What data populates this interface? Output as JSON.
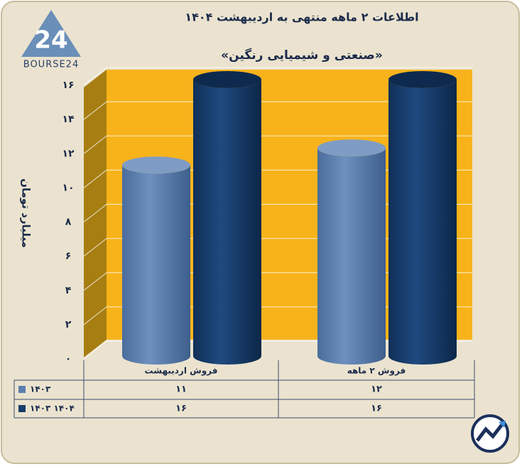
{
  "chart_data": {
    "type": "bar",
    "title": "اطلاعات ۲ ماهه منتهی به اردیبهشت ۱۴۰۴",
    "subtitle": "«صنعتی و شیمیایی رنگین»",
    "y_label": "میلیارد تومان",
    "logo": "BOURSE24",
    "categories": [
      "فروش اردیبهشت",
      "فروش ۲ ماهه"
    ],
    "series": [
      {
        "name": "۱۴۰۳",
        "color": "#5b7fae",
        "values": [
          11,
          12
        ],
        "value_labels": [
          "۱۱",
          "۱۲"
        ]
      },
      {
        "name": "۱۴۰۳ ۱۴۰۴",
        "color": "#173d6b",
        "values": [
          16,
          16
        ],
        "value_labels": [
          "۱۶",
          "۱۶"
        ]
      }
    ],
    "ylim": [
      0,
      16
    ],
    "yticks": [
      {
        "value": 0,
        "label": "۰"
      },
      {
        "value": 2,
        "label": "۲"
      },
      {
        "value": 4,
        "label": "۴"
      },
      {
        "value": 6,
        "label": "۶"
      },
      {
        "value": 8,
        "label": "۸"
      },
      {
        "value": 10,
        "label": "۱۰"
      },
      {
        "value": 12,
        "label": "۱۲"
      },
      {
        "value": 14,
        "label": "۱۴"
      },
      {
        "value": 16,
        "label": "۱۶"
      }
    ],
    "grid": true
  }
}
